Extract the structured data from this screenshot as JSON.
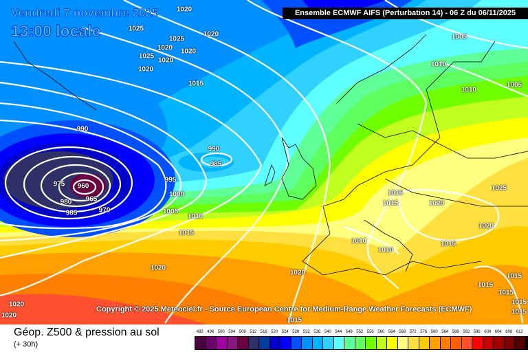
{
  "header": {
    "model": "Ensemble ECMWF AIFS  (Perturbation 14)  -  06 Z du 06/11/2025"
  },
  "valid": {
    "date": "Vendredi 7 novembre 2025",
    "time": "13:00 locale"
  },
  "copyright": "Copyright © 2025 Meteociel.fr - Source European Centre for Medium-Range Weather Forecasts (ECMWF)",
  "footer": {
    "title": "Géop. Z500 & pression au sol",
    "lead": "(+ 30h)"
  },
  "scale": {
    "ticks": [
      "492",
      "496",
      "500",
      "504",
      "508",
      "512",
      "516",
      "520",
      "524",
      "528",
      "532",
      "536",
      "540",
      "544",
      "548",
      "552",
      "556",
      "560",
      "564",
      "568",
      "572",
      "576",
      "580",
      "584",
      "588",
      "592",
      "596",
      "600",
      "604",
      "608",
      "612"
    ],
    "colors": [
      "#4b0040",
      "#6b006b",
      "#a000a0",
      "#8b1580",
      "#6b0040",
      "#303068",
      "#003c9c",
      "#0000c8",
      "#0000ff",
      "#0050ff",
      "#0090ff",
      "#00b4ff",
      "#30d0ff",
      "#60ffff",
      "#60ff98",
      "#60ff60",
      "#70ff00",
      "#c0ff20",
      "#ffff00",
      "#ffff80",
      "#ffe040",
      "#ffcc00",
      "#ffa000",
      "#ff8000",
      "#ff6000",
      "#ff5030",
      "#ff0000",
      "#c80000",
      "#a00000",
      "#780000",
      "#500000",
      "#000000"
    ]
  },
  "isobars": [
    "1020",
    "1025",
    "1020",
    "1025",
    "1020",
    "1020",
    "1025",
    "1020",
    "1020",
    "1015",
    "990",
    "990",
    "985",
    "975",
    "960",
    "995",
    "980",
    "965",
    "970",
    "985",
    "1000",
    "1005",
    "1010",
    "1015",
    "1020",
    "1020",
    "1020",
    "1020",
    "1015",
    "1005",
    "1010",
    "1010",
    "1005",
    "1025",
    "1015",
    "1015",
    "1020",
    "1020",
    "1010",
    "1010",
    "1015",
    "1015",
    "1015",
    "1015",
    "1015",
    "1015"
  ]
}
